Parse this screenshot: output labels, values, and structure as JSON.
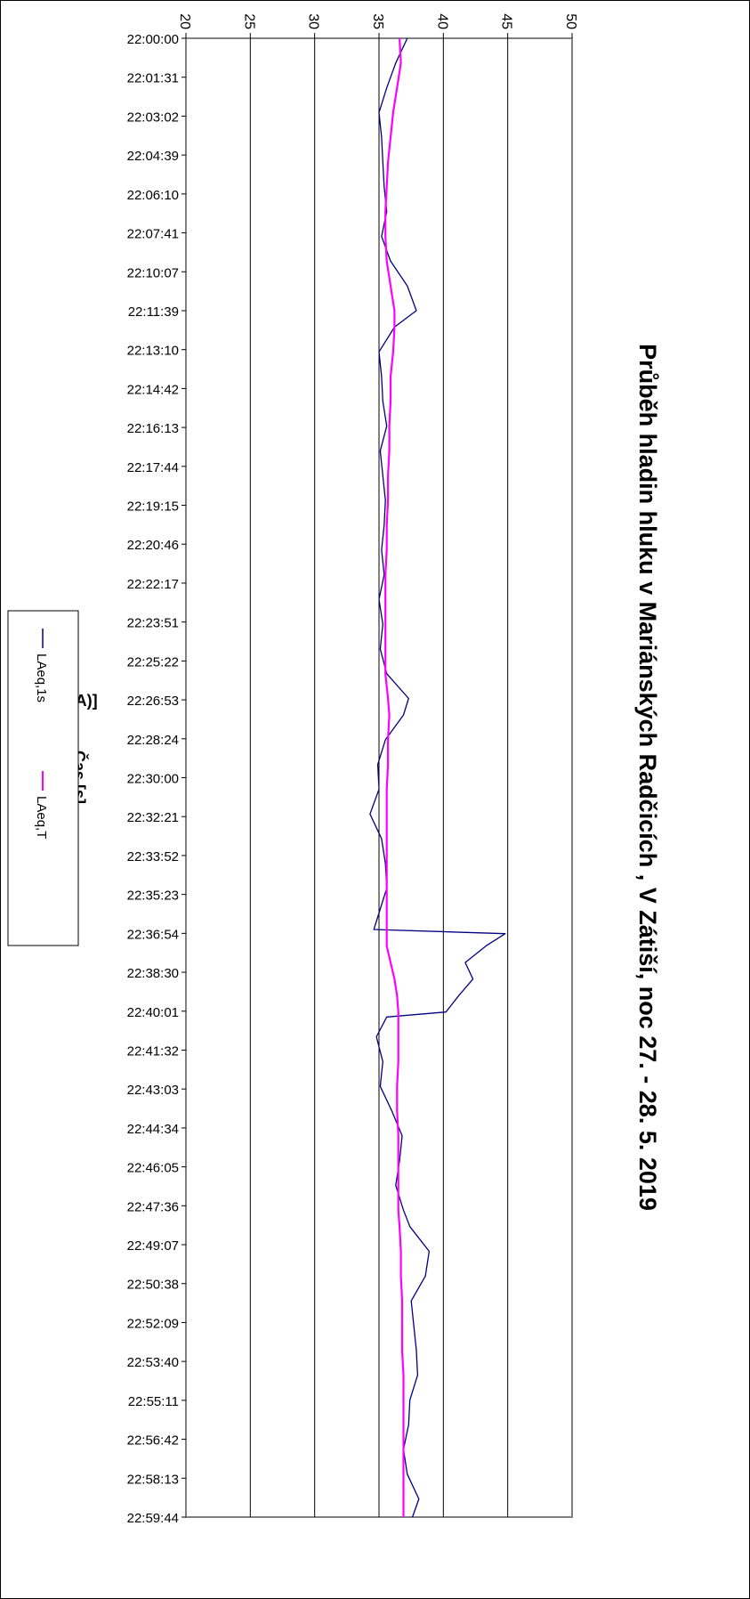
{
  "chart_data": {
    "type": "line",
    "title": "Průběh hladin hluku v Mariánských Radčicích , V Zátiší, noc 27. - 28. 5. 2019",
    "xlabel": "Čas [s]",
    "ylabel": "LA [dB(A)]",
    "ylim": [
      20,
      50
    ],
    "yticks": [
      "20",
      "25",
      "30",
      "35",
      "40",
      "45",
      "50"
    ],
    "xlim": [
      0,
      3584
    ],
    "xtick_labels": [
      "22:00:00",
      "22:01:31",
      "22:03:02",
      "22:04:39",
      "22:06:10",
      "22:07:41",
      "22:10:07",
      "22:11:39",
      "22:13:10",
      "22:14:42",
      "22:16:13",
      "22:17:44",
      "22:19:15",
      "22:20:46",
      "22:22:17",
      "22:23:51",
      "22:25:22",
      "22:26:53",
      "22:28:24",
      "22:30:00",
      "22:32:21",
      "22:33:52",
      "22:35:23",
      "22:36:54",
      "22:38:30",
      "22:40:01",
      "22:41:32",
      "22:43:03",
      "22:44:34",
      "22:46:05",
      "22:47:36",
      "22:49:07",
      "22:50:38",
      "22:52:09",
      "22:53:40",
      "22:55:11",
      "22:56:42",
      "22:58:13",
      "22:59:44"
    ],
    "orientation": "rotated-90-clockwise",
    "grid": true,
    "legend_position": "bottom",
    "series": [
      {
        "name": "LAeq,1s",
        "color": "#000080",
        "points": [
          [
            0,
            37.2
          ],
          [
            60,
            36.3
          ],
          [
            120,
            35.6
          ],
          [
            180,
            35.0
          ],
          [
            240,
            35.2
          ],
          [
            300,
            35.3
          ],
          [
            360,
            35.4
          ],
          [
            420,
            35.6
          ],
          [
            480,
            35.2
          ],
          [
            540,
            35.9
          ],
          [
            600,
            37.2
          ],
          [
            660,
            37.9
          ],
          [
            700,
            36.2
          ],
          [
            760,
            35.0
          ],
          [
            820,
            35.2
          ],
          [
            880,
            35.3
          ],
          [
            940,
            35.6
          ],
          [
            1000,
            35.1
          ],
          [
            1060,
            35.3
          ],
          [
            1120,
            35.5
          ],
          [
            1180,
            35.4
          ],
          [
            1240,
            35.2
          ],
          [
            1300,
            35.4
          ],
          [
            1360,
            35.0
          ],
          [
            1420,
            35.3
          ],
          [
            1480,
            35.1
          ],
          [
            1540,
            35.6
          ],
          [
            1600,
            37.3
          ],
          [
            1640,
            36.9
          ],
          [
            1700,
            35.5
          ],
          [
            1760,
            34.9
          ],
          [
            1820,
            35.0
          ],
          [
            1880,
            34.3
          ],
          [
            1940,
            35.2
          ],
          [
            2000,
            35.5
          ],
          [
            2060,
            35.6
          ],
          [
            2120,
            35.0
          ],
          [
            2160,
            34.6
          ],
          [
            2170,
            44.8
          ],
          [
            2200,
            43.3
          ],
          [
            2240,
            41.7
          ],
          [
            2280,
            42.3
          ],
          [
            2320,
            41.2
          ],
          [
            2360,
            40.2
          ],
          [
            2372,
            35.6
          ],
          [
            2420,
            34.8
          ],
          [
            2480,
            35.3
          ],
          [
            2540,
            35.1
          ],
          [
            2600,
            36.0
          ],
          [
            2660,
            36.8
          ],
          [
            2720,
            36.6
          ],
          [
            2780,
            36.3
          ],
          [
            2840,
            36.9
          ],
          [
            2880,
            37.4
          ],
          [
            2940,
            38.9
          ],
          [
            3000,
            38.6
          ],
          [
            3060,
            37.5
          ],
          [
            3120,
            37.7
          ],
          [
            3180,
            37.9
          ],
          [
            3240,
            38.0
          ],
          [
            3300,
            37.4
          ],
          [
            3360,
            37.3
          ],
          [
            3420,
            36.9
          ],
          [
            3480,
            37.2
          ],
          [
            3540,
            38.1
          ],
          [
            3584,
            37.6
          ]
        ]
      },
      {
        "name": "LAeq,T",
        "color": "#ff00ff",
        "points": [
          [
            0,
            36.6
          ],
          [
            60,
            36.7
          ],
          [
            120,
            36.4
          ],
          [
            180,
            36.1
          ],
          [
            240,
            35.9
          ],
          [
            300,
            35.7
          ],
          [
            360,
            35.6
          ],
          [
            420,
            35.5
          ],
          [
            480,
            35.5
          ],
          [
            540,
            35.6
          ],
          [
            600,
            35.9
          ],
          [
            660,
            36.2
          ],
          [
            700,
            36.2
          ],
          [
            760,
            36.1
          ],
          [
            820,
            35.9
          ],
          [
            880,
            35.9
          ],
          [
            940,
            35.8
          ],
          [
            1000,
            35.8
          ],
          [
            1060,
            35.7
          ],
          [
            1120,
            35.7
          ],
          [
            1180,
            35.6
          ],
          [
            1240,
            35.6
          ],
          [
            1300,
            35.5
          ],
          [
            1360,
            35.5
          ],
          [
            1420,
            35.5
          ],
          [
            1480,
            35.5
          ],
          [
            1540,
            35.5
          ],
          [
            1600,
            35.7
          ],
          [
            1640,
            35.8
          ],
          [
            1700,
            35.7
          ],
          [
            1760,
            35.7
          ],
          [
            1820,
            35.6
          ],
          [
            1880,
            35.6
          ],
          [
            1940,
            35.6
          ],
          [
            2000,
            35.6
          ],
          [
            2060,
            35.6
          ],
          [
            2120,
            35.6
          ],
          [
            2160,
            35.6
          ],
          [
            2200,
            35.6
          ],
          [
            2240,
            35.9
          ],
          [
            2280,
            36.2
          ],
          [
            2320,
            36.4
          ],
          [
            2360,
            36.5
          ],
          [
            2420,
            36.5
          ],
          [
            2480,
            36.5
          ],
          [
            2540,
            36.4
          ],
          [
            2600,
            36.4
          ],
          [
            2660,
            36.5
          ],
          [
            2720,
            36.5
          ],
          [
            2780,
            36.5
          ],
          [
            2840,
            36.5
          ],
          [
            2880,
            36.6
          ],
          [
            2940,
            36.7
          ],
          [
            3000,
            36.7
          ],
          [
            3060,
            36.8
          ],
          [
            3120,
            36.8
          ],
          [
            3180,
            36.8
          ],
          [
            3240,
            36.9
          ],
          [
            3300,
            36.9
          ],
          [
            3360,
            36.9
          ],
          [
            3420,
            36.9
          ],
          [
            3480,
            36.9
          ],
          [
            3540,
            36.9
          ],
          [
            3584,
            36.9
          ]
        ]
      }
    ]
  }
}
